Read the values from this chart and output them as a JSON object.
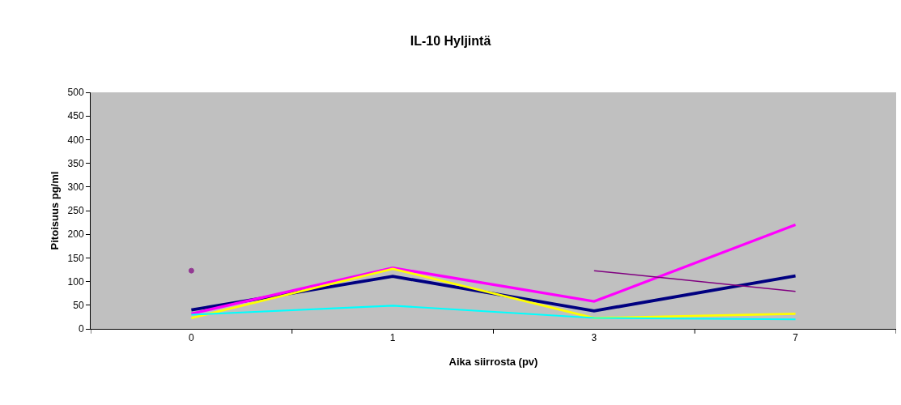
{
  "chart_data": {
    "type": "line",
    "title": "IL-10 Hyljintä",
    "xlabel": "Aika siirrosta (pv)",
    "ylabel": "Pitoisuus pg/ml",
    "categories": [
      "0",
      "1",
      "3",
      "7"
    ],
    "series": [
      {
        "color": "#000080",
        "values": [
          40,
          111,
          38,
          112
        ]
      },
      {
        "color": "#ff00ff",
        "values": [
          32,
          129,
          58,
          220
        ]
      },
      {
        "color": "#ffff00",
        "values": [
          23,
          127,
          23,
          32
        ]
      },
      {
        "color": "#00ffff",
        "values": [
          30,
          49,
          23,
          20
        ]
      },
      {
        "color": "#800080",
        "values": [
          123,
          null,
          123,
          79
        ]
      }
    ],
    "ylim": [
      0,
      500
    ],
    "yticks": [
      0,
      50,
      100,
      150,
      200,
      250,
      300,
      350,
      400,
      450,
      500
    ],
    "grid": false,
    "marker": "none",
    "line_style": "solid"
  }
}
